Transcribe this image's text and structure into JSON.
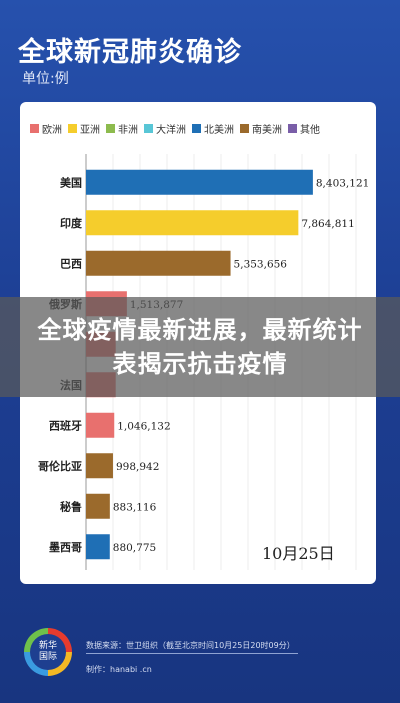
{
  "header": {
    "title": "全球新冠肺炎确诊",
    "unit": "单位:例"
  },
  "legend": [
    {
      "label": "欧洲",
      "color": "#e8706e"
    },
    {
      "label": "亚洲",
      "color": "#f5cd2c"
    },
    {
      "label": "非洲",
      "color": "#8dbb4e"
    },
    {
      "label": "大洋洲",
      "color": "#58c6d6"
    },
    {
      "label": "北美洲",
      "color": "#1f6fb5"
    },
    {
      "label": "南美洲",
      "color": "#9b6a2c"
    },
    {
      "label": "其他",
      "color": "#7a5ea8"
    }
  ],
  "chart_data": {
    "type": "bar",
    "orientation": "horizontal",
    "categories": [
      "美国",
      "印度",
      "巴西",
      "俄罗斯",
      "",
      "法国",
      "西班牙",
      "哥伦比亚",
      "秘鲁",
      "墨西哥"
    ],
    "values": [
      8403121,
      7864811,
      5353656,
      1513877,
      1100000,
      1100000,
      1046132,
      998942,
      883116,
      880775
    ],
    "value_labels": [
      "8,403,121",
      "7,864,811",
      "5,353,656",
      "1,513,877",
      "",
      "",
      "1,046,132",
      "998,942",
      "883,116",
      "880,775"
    ],
    "colors": [
      "#1f6fb5",
      "#f5cd2c",
      "#9b6a2c",
      "#e8706e",
      "#e8706e",
      "#e8706e",
      "#e8706e",
      "#9b6a2c",
      "#9b6a2c",
      "#1f6fb5"
    ],
    "xlim": [
      0,
      10000000
    ],
    "title": "",
    "xlabel": "",
    "ylabel": "",
    "legend_position": "top"
  },
  "date": "10月25日",
  "banner": {
    "text": "全球疫情最新进展，最新统计表揭示抗击疫情"
  },
  "footer": {
    "logo_text": "新华\n国际",
    "source": "数据来源：世卫组织（截至北京时间10月25日20时09分）",
    "maker": "制作：hanabi .cn"
  }
}
